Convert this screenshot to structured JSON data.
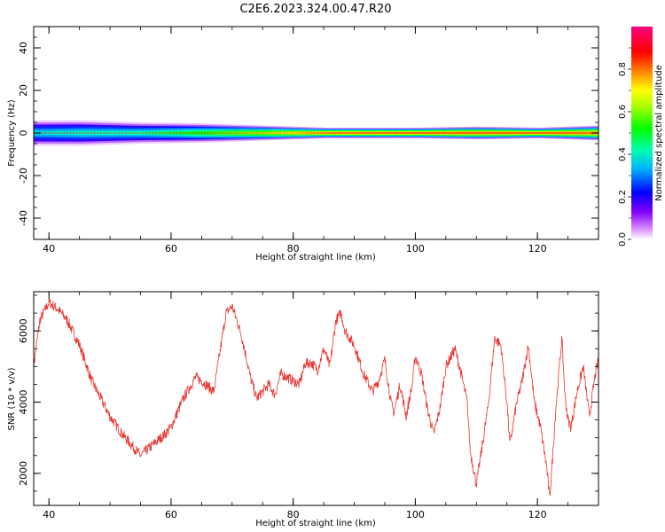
{
  "title": "C2E6.2023.324.00.47.R20",
  "spectrogram": {
    "type": "heatmap",
    "xlabel": "Height of straight line (km)",
    "ylabel": "Frequency (Hz)",
    "xlim": [
      37.5,
      130
    ],
    "ylim": [
      -50,
      50
    ],
    "xticks": [
      "40",
      "60",
      "80",
      "100",
      "120"
    ],
    "yticks": [
      "40",
      "20",
      "0",
      "-20",
      "-40"
    ],
    "colorbar": {
      "label": "Normalized spectral amplitude",
      "range": [
        0,
        1
      ],
      "ticks": [
        "0.0",
        "0.2",
        "0.4",
        "0.6",
        "0.8"
      ]
    },
    "band": [
      {
        "x": 38,
        "halfwidth": 6.0,
        "peak": 0.45
      },
      {
        "x": 45,
        "halfwidth": 6.0,
        "peak": 0.48
      },
      {
        "x": 55,
        "halfwidth": 5.0,
        "peak": 0.5
      },
      {
        "x": 65,
        "halfwidth": 4.5,
        "peak": 0.62
      },
      {
        "x": 75,
        "halfwidth": 3.5,
        "peak": 0.75
      },
      {
        "x": 85,
        "halfwidth": 2.5,
        "peak": 0.92
      },
      {
        "x": 100,
        "halfwidth": 2.5,
        "peak": 0.95
      },
      {
        "x": 110,
        "halfwidth": 3.0,
        "peak": 0.95
      },
      {
        "x": 120,
        "halfwidth": 2.5,
        "peak": 0.95
      },
      {
        "x": 130,
        "halfwidth": 3.5,
        "peak": 0.93
      }
    ]
  },
  "snr": {
    "type": "line",
    "xlabel": "Height of straight line (km)",
    "ylabel": "SNR (10 * v/v)",
    "xlim": [
      37.5,
      130
    ],
    "ylim": [
      1100,
      7100
    ],
    "xticks": [
      "40",
      "60",
      "80",
      "100",
      "120"
    ],
    "yticks": [
      "6000",
      "4000",
      "2000"
    ],
    "color": "#e8332e",
    "series": [
      {
        "x": [
          37.5,
          38.5,
          40,
          41.5,
          43,
          45,
          47,
          50,
          52,
          54,
          55,
          57,
          59,
          60,
          62,
          64,
          65,
          67,
          68,
          69,
          70,
          71.5,
          73,
          74,
          75,
          76,
          77,
          78,
          79,
          80,
          81,
          82,
          83,
          84,
          85,
          86,
          87,
          87.8,
          88.5,
          90,
          91.5,
          93,
          94,
          95,
          96,
          96.5,
          97.5,
          98.5,
          99.5,
          100,
          101,
          102,
          103,
          104,
          105,
          106.5,
          107.5,
          108.5,
          109,
          110,
          111,
          112,
          113,
          114,
          115,
          115.5,
          116.5,
          117.5,
          118.5,
          119.5,
          120.5,
          121.5,
          122,
          122.5,
          123,
          124,
          124.5,
          125,
          125.5,
          126.5,
          127.5,
          128.5,
          129.5,
          130
        ],
        "y": [
          5000,
          6300,
          6800,
          6600,
          6300,
          5600,
          4600,
          3600,
          3100,
          2700,
          2500,
          2800,
          3100,
          3300,
          4100,
          4700,
          4600,
          4300,
          5400,
          6500,
          6700,
          5900,
          4700,
          4100,
          4300,
          4500,
          4200,
          4800,
          4700,
          4600,
          4500,
          5100,
          5100,
          4900,
          5500,
          5000,
          6300,
          6500,
          6000,
          5600,
          4800,
          4300,
          4600,
          5200,
          4000,
          3700,
          4500,
          3600,
          4500,
          5300,
          4800,
          3800,
          3100,
          3800,
          5000,
          5500,
          4800,
          4000,
          2600,
          1700,
          2800,
          4000,
          5800,
          5600,
          4000,
          2800,
          3900,
          4600,
          5600,
          4000,
          3300,
          2200,
          1300,
          2500,
          3800,
          5800,
          4200,
          3500,
          3300,
          4300,
          5000,
          3600,
          4800,
          5200
        ]
      }
    ]
  }
}
